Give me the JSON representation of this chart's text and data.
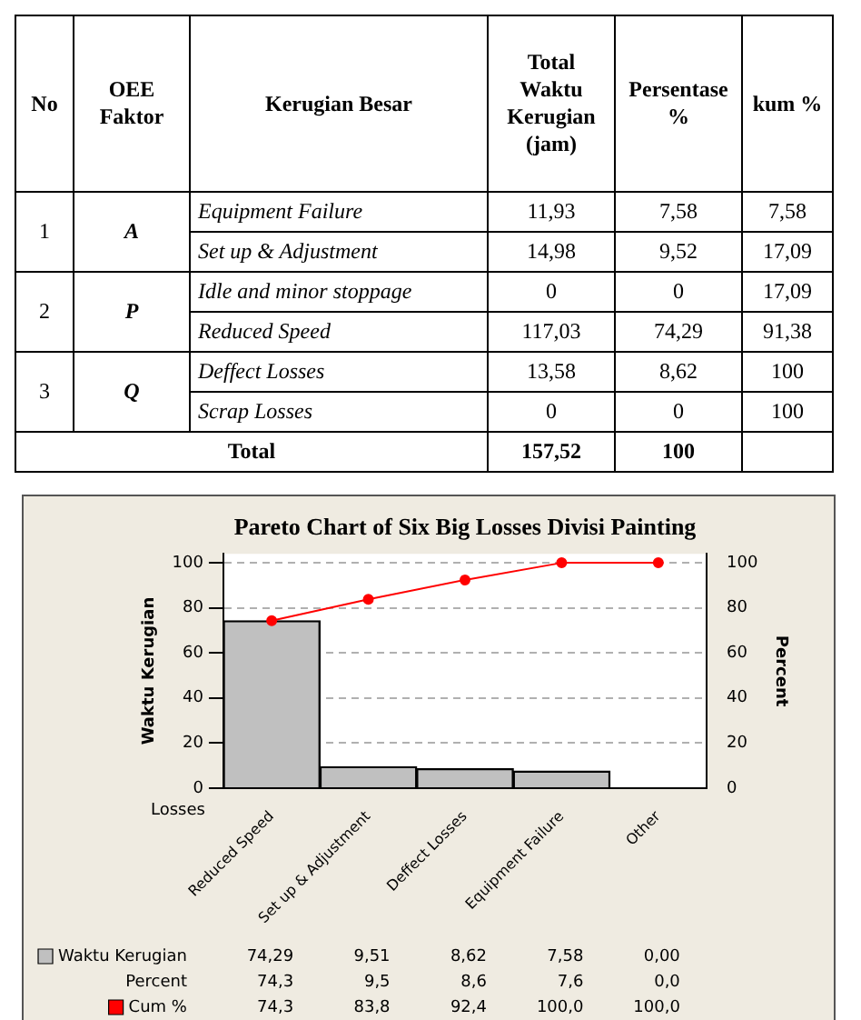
{
  "chart_data": [
    {
      "type": "other",
      "categories": [
        "No",
        "OEE Faktor",
        "Kerugian    Besar",
        "Total Waktu Kerugian (jam)",
        "Persentase %",
        "kum %"
      ],
      "cell_labels": [
        [
          "1",
          "A",
          "Equipment Failure",
          "11,93",
          "7,58",
          "7,58"
        ],
        [
          null,
          null,
          "Set up & Adjustment",
          "14,98",
          "9,52",
          "17,09"
        ],
        [
          "2",
          "P",
          "Idle and minor stoppage",
          "0",
          "0",
          "17,09"
        ],
        [
          null,
          null,
          "Reduced Speed",
          "117,03",
          "74,29",
          "91,38"
        ],
        [
          "3",
          "Q",
          "Deffect Losses",
          "13,58",
          "8,62",
          "100"
        ],
        [
          null,
          null,
          "Scrap Losses",
          "0",
          "0",
          "100"
        ],
        [
          "Total",
          null,
          null,
          "157,52",
          "100"
        ]
      ]
    },
    {
      "type": "bar",
      "title": "Pareto Chart of Six Big Losses Divisi Painting",
      "xlabel": "Losses",
      "ylabel": "Waktu Kerugian",
      "y2label": "Percent",
      "categories": [
        "Reduced Speed",
        "Set up & Adjustment",
        "Deffect Losses",
        "Equipment Failure",
        "Other"
      ],
      "series": [
        {
          "type": "bar",
          "name": "Waktu Kerugian",
          "color": "#c0c0c0",
          "values": [
            74.29,
            9.51,
            8.62,
            7.58,
            0
          ],
          "value_labels": [
            "74,29",
            "9,51",
            "8,62",
            "7,58",
            "0,00"
          ]
        },
        {
          "type": "line",
          "name": "Cum %",
          "color": "#ff0000",
          "axis": "y2",
          "values": [
            74.3,
            83.8,
            92.4,
            100,
            100
          ],
          "value_labels": [
            "74,3",
            "83,8",
            "92,4",
            "100,0",
            "100,0"
          ]
        }
      ],
      "annotations": [
        "Percent",
        "74,3",
        "9,5",
        "8,6",
        "7,6",
        "0,0"
      ],
      "marker": "circle",
      "grid": "y",
      "legend": "bottom left",
      "ylim": [
        0,
        104
      ],
      "yticks": [
        0,
        20,
        40,
        60,
        80,
        100
      ],
      "y2lim": [
        0,
        104
      ],
      "y2ticks": [
        0,
        20,
        40,
        60,
        80,
        100
      ]
    }
  ]
}
